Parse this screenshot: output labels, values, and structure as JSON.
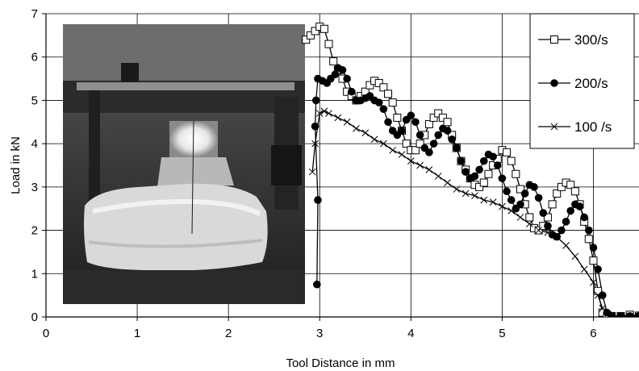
{
  "chart_data": {
    "type": "line",
    "title": "",
    "xlabel": "Tool Distance in mm",
    "ylabel": "Load in kN",
    "xlim": [
      0,
      6.5
    ],
    "ylim": [
      0,
      7
    ],
    "xticks": [
      "0",
      "1",
      "2",
      "3",
      "4",
      "5",
      "6"
    ],
    "yticks": [
      "0",
      "1",
      "2",
      "3",
      "4",
      "5",
      "6",
      "7"
    ],
    "grid": true,
    "legend_position": "top-right",
    "inset_photo": "photograph of a test specimen (foam-like sample) under a cylindrical loading tool",
    "series": [
      {
        "name": "300/s",
        "marker": "open-square",
        "color": "#000000",
        "points": [
          [
            2.85,
            6.4
          ],
          [
            2.9,
            6.5
          ],
          [
            2.95,
            6.6
          ],
          [
            3.0,
            6.7
          ],
          [
            3.05,
            6.65
          ],
          [
            3.1,
            6.3
          ],
          [
            3.15,
            5.9
          ],
          [
            3.2,
            5.7
          ],
          [
            3.25,
            5.5
          ],
          [
            3.3,
            5.2
          ],
          [
            3.35,
            5.1
          ],
          [
            3.4,
            5.0
          ],
          [
            3.45,
            5.1
          ],
          [
            3.5,
            5.2
          ],
          [
            3.55,
            5.35
          ],
          [
            3.6,
            5.45
          ],
          [
            3.65,
            5.4
          ],
          [
            3.7,
            5.3
          ],
          [
            3.75,
            5.15
          ],
          [
            3.8,
            4.95
          ],
          [
            3.85,
            4.6
          ],
          [
            3.9,
            4.3
          ],
          [
            3.95,
            4.0
          ],
          [
            4.0,
            3.85
          ],
          [
            4.05,
            3.85
          ],
          [
            4.1,
            4.0
          ],
          [
            4.15,
            4.2
          ],
          [
            4.2,
            4.45
          ],
          [
            4.25,
            4.6
          ],
          [
            4.3,
            4.7
          ],
          [
            4.35,
            4.6
          ],
          [
            4.4,
            4.5
          ],
          [
            4.45,
            4.2
          ],
          [
            4.5,
            3.9
          ],
          [
            4.55,
            3.6
          ],
          [
            4.6,
            3.4
          ],
          [
            4.65,
            3.2
          ],
          [
            4.7,
            3.05
          ],
          [
            4.75,
            3.0
          ],
          [
            4.8,
            3.1
          ],
          [
            4.85,
            3.3
          ],
          [
            4.9,
            3.5
          ],
          [
            4.95,
            3.65
          ],
          [
            5.0,
            3.85
          ],
          [
            5.05,
            3.8
          ],
          [
            5.1,
            3.6
          ],
          [
            5.15,
            3.3
          ],
          [
            5.2,
            2.95
          ],
          [
            5.25,
            2.6
          ],
          [
            5.3,
            2.3
          ],
          [
            5.35,
            2.05
          ],
          [
            5.4,
            2.0
          ],
          [
            5.45,
            2.1
          ],
          [
            5.5,
            2.3
          ],
          [
            5.55,
            2.6
          ],
          [
            5.6,
            2.85
          ],
          [
            5.65,
            3.0
          ],
          [
            5.7,
            3.1
          ],
          [
            5.75,
            3.05
          ],
          [
            5.8,
            2.9
          ],
          [
            5.85,
            2.6
          ],
          [
            5.9,
            2.2
          ],
          [
            5.95,
            1.8
          ],
          [
            6.0,
            1.3
          ],
          [
            6.05,
            0.6
          ],
          [
            6.1,
            0.1
          ],
          [
            6.15,
            0.03
          ],
          [
            6.2,
            0.02
          ],
          [
            6.3,
            0.02
          ],
          [
            6.4,
            0.05
          ],
          [
            6.5,
            0.03
          ]
        ]
      },
      {
        "name": "200/s",
        "marker": "filled-circle",
        "color": "#000000",
        "points": [
          [
            2.97,
            0.75
          ],
          [
            2.98,
            2.7
          ],
          [
            2.95,
            4.4
          ],
          [
            2.96,
            5.0
          ],
          [
            2.98,
            5.5
          ],
          [
            3.03,
            5.45
          ],
          [
            3.08,
            5.4
          ],
          [
            3.12,
            5.5
          ],
          [
            3.17,
            5.6
          ],
          [
            3.2,
            5.75
          ],
          [
            3.25,
            5.7
          ],
          [
            3.3,
            5.5
          ],
          [
            3.35,
            5.2
          ],
          [
            3.4,
            5.0
          ],
          [
            3.45,
            5.0
          ],
          [
            3.5,
            5.05
          ],
          [
            3.55,
            5.1
          ],
          [
            3.6,
            5.0
          ],
          [
            3.65,
            4.95
          ],
          [
            3.7,
            4.8
          ],
          [
            3.75,
            4.5
          ],
          [
            3.8,
            4.3
          ],
          [
            3.85,
            4.2
          ],
          [
            3.9,
            4.3
          ],
          [
            3.95,
            4.55
          ],
          [
            4.0,
            4.65
          ],
          [
            4.05,
            4.5
          ],
          [
            4.1,
            4.2
          ],
          [
            4.15,
            3.9
          ],
          [
            4.2,
            3.8
          ],
          [
            4.25,
            4.0
          ],
          [
            4.3,
            4.2
          ],
          [
            4.35,
            4.35
          ],
          [
            4.4,
            4.3
          ],
          [
            4.45,
            4.1
          ],
          [
            4.5,
            3.9
          ],
          [
            4.55,
            3.6
          ],
          [
            4.6,
            3.35
          ],
          [
            4.65,
            3.2
          ],
          [
            4.7,
            3.25
          ],
          [
            4.75,
            3.4
          ],
          [
            4.8,
            3.6
          ],
          [
            4.85,
            3.75
          ],
          [
            4.9,
            3.7
          ],
          [
            4.95,
            3.5
          ],
          [
            5.0,
            3.2
          ],
          [
            5.05,
            2.9
          ],
          [
            5.1,
            2.7
          ],
          [
            5.15,
            2.5
          ],
          [
            5.2,
            2.6
          ],
          [
            5.25,
            2.85
          ],
          [
            5.3,
            3.05
          ],
          [
            5.35,
            3.0
          ],
          [
            5.4,
            2.75
          ],
          [
            5.45,
            2.4
          ],
          [
            5.5,
            2.1
          ],
          [
            5.55,
            1.9
          ],
          [
            5.6,
            1.85
          ],
          [
            5.65,
            2.0
          ],
          [
            5.7,
            2.2
          ],
          [
            5.75,
            2.45
          ],
          [
            5.8,
            2.6
          ],
          [
            5.85,
            2.55
          ],
          [
            5.9,
            2.3
          ],
          [
            5.95,
            2.0
          ],
          [
            6.0,
            1.6
          ],
          [
            6.05,
            1.1
          ],
          [
            6.1,
            0.5
          ],
          [
            6.15,
            0.1
          ],
          [
            6.2,
            0.03
          ],
          [
            6.3,
            0.02
          ],
          [
            6.4,
            0.02
          ],
          [
            6.5,
            0.02
          ]
        ]
      },
      {
        "name": "100 /s",
        "marker": "x-cross",
        "color": "#000000",
        "points": [
          [
            2.92,
            3.35
          ],
          [
            2.95,
            4.0
          ],
          [
            3.0,
            4.7
          ],
          [
            3.05,
            4.75
          ],
          [
            3.1,
            4.7
          ],
          [
            3.2,
            4.6
          ],
          [
            3.3,
            4.5
          ],
          [
            3.4,
            4.35
          ],
          [
            3.5,
            4.25
          ],
          [
            3.6,
            4.1
          ],
          [
            3.7,
            4.0
          ],
          [
            3.8,
            3.85
          ],
          [
            3.9,
            3.75
          ],
          [
            4.0,
            3.6
          ],
          [
            4.1,
            3.5
          ],
          [
            4.2,
            3.4
          ],
          [
            4.3,
            3.25
          ],
          [
            4.4,
            3.1
          ],
          [
            4.5,
            2.95
          ],
          [
            4.6,
            2.85
          ],
          [
            4.7,
            2.8
          ],
          [
            4.8,
            2.7
          ],
          [
            4.9,
            2.65
          ],
          [
            5.0,
            2.55
          ],
          [
            5.1,
            2.45
          ],
          [
            5.2,
            2.3
          ],
          [
            5.3,
            2.15
          ],
          [
            5.4,
            2.0
          ],
          [
            5.5,
            1.95
          ],
          [
            5.6,
            1.85
          ],
          [
            5.7,
            1.65
          ],
          [
            5.8,
            1.4
          ],
          [
            5.9,
            1.1
          ],
          [
            6.0,
            0.8
          ],
          [
            6.05,
            0.5
          ],
          [
            6.1,
            0.2
          ],
          [
            6.15,
            0.05
          ],
          [
            6.2,
            0.02
          ],
          [
            6.3,
            0.02
          ],
          [
            6.4,
            0.02
          ],
          [
            6.5,
            0.02
          ]
        ]
      }
    ]
  }
}
